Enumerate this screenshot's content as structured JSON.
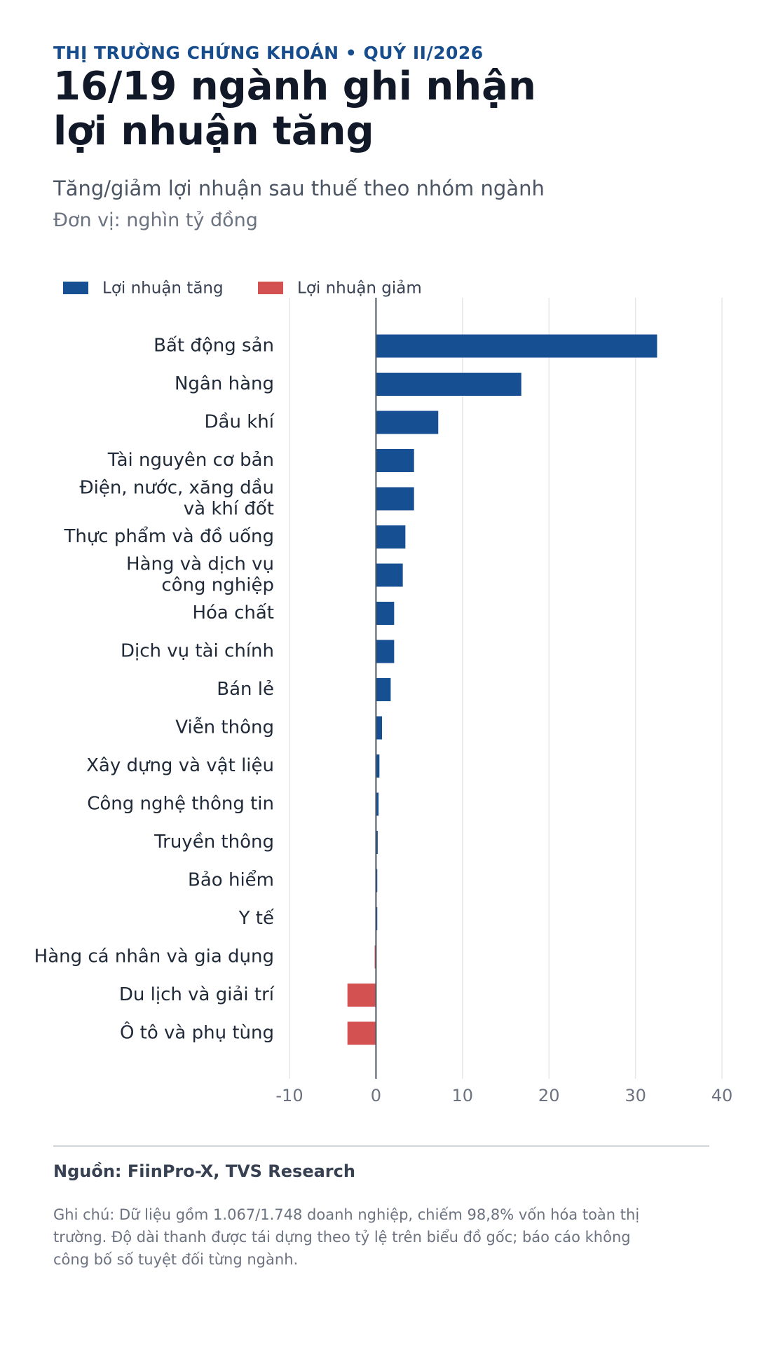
{
  "kicker": "THỊ TRƯỜNG CHỨNG KHOÁN  •  QUÝ II/2026",
  "title_lines": [
    "16/19 ngành ghi nhận",
    "lợi nhuận tăng"
  ],
  "subtitle": "Tăng/giảm lợi nhuận sau thuế theo nhóm ngành",
  "unit": "Đơn vị: nghìn tỷ đồng",
  "source": "Nguồn: FiinPro-X, TVS Research",
  "note": "Ghi chú: Dữ liệu gồm 1.067/1.748 doanh nghiệp, chiếm 98,8% vốn hóa toàn thị trường. Độ dài thanh được tái dựng theo tỷ lệ trên biểu đồ gốc; báo cáo không công bố số tuyệt đối từng ngành.",
  "colors": {
    "increase": "#174f93",
    "decrease": "#d35151",
    "axis": "#4b5563",
    "grid": "#e5e7eb"
  },
  "chart_data": {
    "type": "bar",
    "orientation": "horizontal",
    "title": "16/19 ngành ghi nhận lợi nhuận tăng",
    "xlabel": "",
    "ylabel": "",
    "xlim": [
      -10,
      40
    ],
    "xticks": [
      -10,
      0,
      10,
      20,
      30,
      40
    ],
    "grid": true,
    "legend_position": "top-left",
    "legend": [
      {
        "name": "Lợi nhuận tăng",
        "color": "#174f93"
      },
      {
        "name": "Lợi nhuận giảm",
        "color": "#d35151"
      }
    ],
    "categories": [
      [
        "Bất động sản"
      ],
      [
        "Ngân hàng"
      ],
      [
        "Dầu khí"
      ],
      [
        "Tài nguyên cơ bản"
      ],
      [
        "Điện, nước, xăng dầu",
        "và khí đốt"
      ],
      [
        "Thực phẩm và đồ uống"
      ],
      [
        "Hàng và dịch vụ",
        "công nghiệp"
      ],
      [
        "Hóa chất"
      ],
      [
        "Dịch vụ tài chính"
      ],
      [
        "Bán lẻ"
      ],
      [
        "Viễn thông"
      ],
      [
        "Xây dựng và vật liệu"
      ],
      [
        "Công nghệ thông tin"
      ],
      [
        "Truyền thông"
      ],
      [
        "Bảo hiểm"
      ],
      [
        "Y tế"
      ],
      [
        "Hàng cá nhân và gia dụng"
      ],
      [
        "Du lịch và giải trí"
      ],
      [
        "Ô tô và phụ tùng"
      ]
    ],
    "values": [
      32.5,
      16.8,
      7.2,
      4.4,
      4.4,
      3.4,
      3.1,
      2.1,
      2.1,
      1.7,
      0.7,
      0.4,
      0.3,
      0.2,
      0.15,
      0.15,
      -0.15,
      -3.3,
      -3.3
    ]
  }
}
